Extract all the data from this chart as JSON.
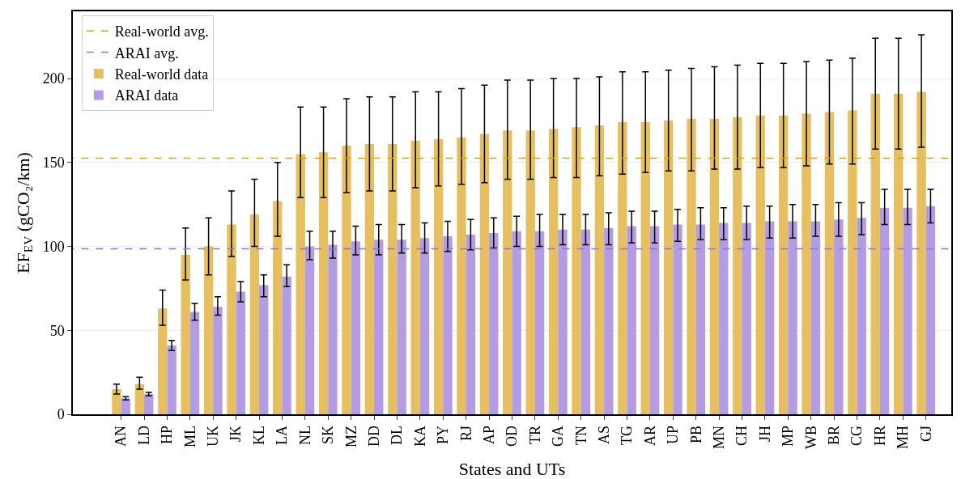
{
  "chart_data": {
    "type": "bar",
    "xlabel": "States and UTs",
    "ylabel": "EF$_{EV}$ (gCO₂/km)",
    "categories": [
      "AN",
      "LD",
      "HP",
      "ML",
      "UK",
      "JK",
      "KL",
      "LA",
      "NL",
      "SK",
      "MZ",
      "DD",
      "DL",
      "KA",
      "PY",
      "RJ",
      "AP",
      "OD",
      "TR",
      "GA",
      "TN",
      "AS",
      "TG",
      "AR",
      "UP",
      "PB",
      "MN",
      "CH",
      "JH",
      "MP",
      "WB",
      "BR",
      "CG",
      "HR",
      "MH",
      "GJ"
    ],
    "series": [
      {
        "name": "Real-world data",
        "color": "#e6bf60",
        "values": [
          15,
          18,
          63,
          95,
          100,
          113,
          119,
          127,
          155,
          156,
          160,
          161,
          161,
          163,
          164,
          165,
          167,
          169,
          169,
          170,
          171,
          172,
          174,
          174,
          175,
          176,
          176,
          177,
          178,
          178,
          179,
          180,
          181,
          191,
          191,
          192
        ],
        "errors": [
          [
            12,
            18
          ],
          [
            15,
            22
          ],
          [
            53,
            74
          ],
          [
            80,
            111
          ],
          [
            83,
            117
          ],
          [
            94,
            133
          ],
          [
            100,
            140
          ],
          [
            106,
            150
          ],
          [
            129,
            183
          ],
          [
            129,
            183
          ],
          [
            132,
            188
          ],
          [
            133,
            189
          ],
          [
            133,
            189
          ],
          [
            135,
            192
          ],
          [
            136,
            192
          ],
          [
            137,
            194
          ],
          [
            138,
            196
          ],
          [
            140,
            199
          ],
          [
            140,
            199
          ],
          [
            141,
            200
          ],
          [
            141,
            200
          ],
          [
            142,
            201
          ],
          [
            143,
            204
          ],
          [
            144,
            204
          ],
          [
            145,
            205
          ],
          [
            145,
            206
          ],
          [
            146,
            207
          ],
          [
            146,
            208
          ],
          [
            147,
            209
          ],
          [
            147,
            209
          ],
          [
            148,
            210
          ],
          [
            149,
            211
          ],
          [
            149,
            212
          ],
          [
            158,
            224
          ],
          [
            158,
            224
          ],
          [
            159,
            226
          ]
        ]
      },
      {
        "name": "ARAI data",
        "color": "#b39ce3",
        "values": [
          9.5,
          12,
          41,
          61,
          64,
          73,
          77,
          82,
          100,
          101,
          103,
          104,
          104,
          105,
          106,
          107,
          108,
          109,
          109,
          110,
          110,
          111,
          112,
          112,
          113,
          113,
          114,
          114,
          115,
          115,
          115,
          116,
          117,
          123,
          123,
          124
        ],
        "errors": [
          [
            8.5,
            10.5
          ],
          [
            11,
            13
          ],
          [
            38,
            44
          ],
          [
            56,
            66
          ],
          [
            59,
            70
          ],
          [
            67,
            79
          ],
          [
            70,
            83
          ],
          [
            76,
            89
          ],
          [
            92,
            109
          ],
          [
            93,
            109
          ],
          [
            95,
            112
          ],
          [
            95,
            113
          ],
          [
            96,
            113
          ],
          [
            96,
            114
          ],
          [
            97,
            115
          ],
          [
            98,
            116
          ],
          [
            99,
            117
          ],
          [
            100,
            118
          ],
          [
            100,
            119
          ],
          [
            101,
            119
          ],
          [
            101,
            119
          ],
          [
            101,
            120
          ],
          [
            102,
            121
          ],
          [
            102,
            121
          ],
          [
            103,
            122
          ],
          [
            104,
            123
          ],
          [
            104,
            123
          ],
          [
            104,
            124
          ],
          [
            105,
            124
          ],
          [
            105,
            125
          ],
          [
            106,
            125
          ],
          [
            106,
            126
          ],
          [
            107,
            126
          ],
          [
            113,
            134
          ],
          [
            113,
            134
          ],
          [
            114,
            134
          ]
        ]
      }
    ],
    "ref_lines": [
      {
        "axis": "y",
        "value": 152.5,
        "label": "Real-world avg.",
        "color": "#e0a000",
        "line_style": "dashed"
      },
      {
        "axis": "y",
        "value": 98.5,
        "label": "ARAI avg.",
        "color": "#9370db",
        "line_style": "dashed"
      }
    ],
    "ylim": [
      0,
      240
    ],
    "yticks": [
      0,
      50,
      100,
      150,
      200
    ],
    "grid": "y",
    "legend": "top left"
  }
}
